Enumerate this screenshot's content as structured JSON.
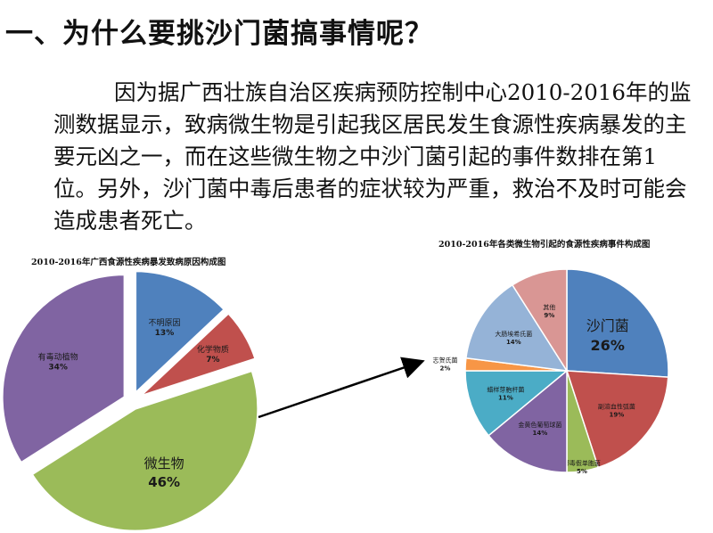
{
  "title": "一、为什么要挑沙门菌搞事情呢？",
  "paragraph": "因为据广西壮族自治区疾病预防控制中心2010-2016年的监测数据显示，致病微生物是引起我区居民发生食源性疾病暴发的主要元凶之一，而在这些微生物之中沙门菌引起的事件数排在第1位。另外，沙门菌中毒后患者的症状较为严重，救治不及时可能会造成患者死亡。",
  "colors": {
    "blue": "#4f81bd",
    "red": "#c0504d",
    "green": "#9bbb59",
    "purple": "#8064a2",
    "teal": "#4bacc6",
    "orange": "#f79646",
    "lightblue": "#95b3d7",
    "rose": "#d99694"
  },
  "chart_data": [
    {
      "type": "pie",
      "title": "2010-2016年广西食源性疾病暴发致病原因构成图",
      "slices": [
        {
          "label": "不明原因",
          "pct_label": "13%",
          "value": 13,
          "color": "#4f81bd"
        },
        {
          "label": "化学物质",
          "pct_label": "7%",
          "value": 7,
          "color": "#c0504d"
        },
        {
          "label": "微生物",
          "pct_label": "46%",
          "value": 46,
          "color": "#9bbb59"
        },
        {
          "label": "有毒动植物",
          "pct_label": "34%",
          "value": 34,
          "color": "#8064a2"
        }
      ]
    },
    {
      "type": "pie",
      "title": "2010-2016年各类微生物引起的食源性疾病事件构成图",
      "slices": [
        {
          "label": "沙门菌",
          "pct_label": "26%",
          "value": 26,
          "color": "#4f81bd"
        },
        {
          "label": "副溶血性弧菌",
          "pct_label": "19%",
          "value": 19,
          "color": "#c0504d"
        },
        {
          "label": "椰毒假单胞菌",
          "pct_label": "5%",
          "value": 5,
          "color": "#9bbb59"
        },
        {
          "label": "金黄色葡萄球菌",
          "pct_label": "14%",
          "value": 14,
          "color": "#8064a2"
        },
        {
          "label": "蜡样芽胞杆菌",
          "pct_label": "11%",
          "value": 11,
          "color": "#4bacc6"
        },
        {
          "label": "志贺氏菌",
          "pct_label": "2%",
          "value": 2,
          "color": "#f79646"
        },
        {
          "label": "大肠埃希氏菌",
          "pct_label": "14%",
          "value": 14,
          "color": "#95b3d7"
        },
        {
          "label": "其他",
          "pct_label": "9%",
          "value": 9,
          "color": "#d99694"
        }
      ]
    }
  ]
}
